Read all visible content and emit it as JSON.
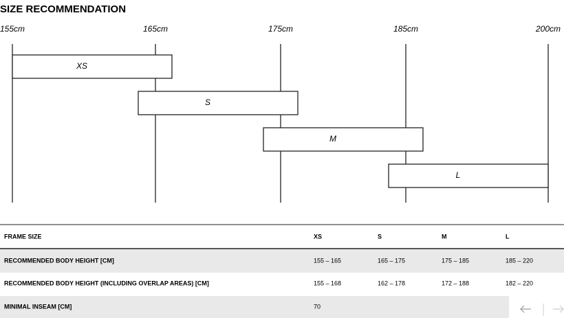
{
  "title": "SIZE RECOMMENDATION",
  "scale": [
    "155cm",
    "165cm",
    "175cm",
    "185cm",
    "200cm"
  ],
  "bars": [
    "XS",
    "S",
    "M",
    "L"
  ],
  "table": {
    "header": [
      "FRAME SIZE",
      "XS",
      "S",
      "M",
      "L"
    ],
    "rows": [
      [
        "RECOMMENDED BODY HEIGHT [CM]",
        "155 – 165",
        "165 – 175",
        "175 – 185",
        "185 – 220"
      ],
      [
        "RECOMMENDED BODY HEIGHT (INCLUDING OVERLAP AREAS) [CM]",
        "155 – 168",
        "162 – 178",
        "172 – 188",
        "182 – 220"
      ],
      [
        "MINIMAL INSEAM [CM]",
        "70"
      ]
    ]
  }
}
